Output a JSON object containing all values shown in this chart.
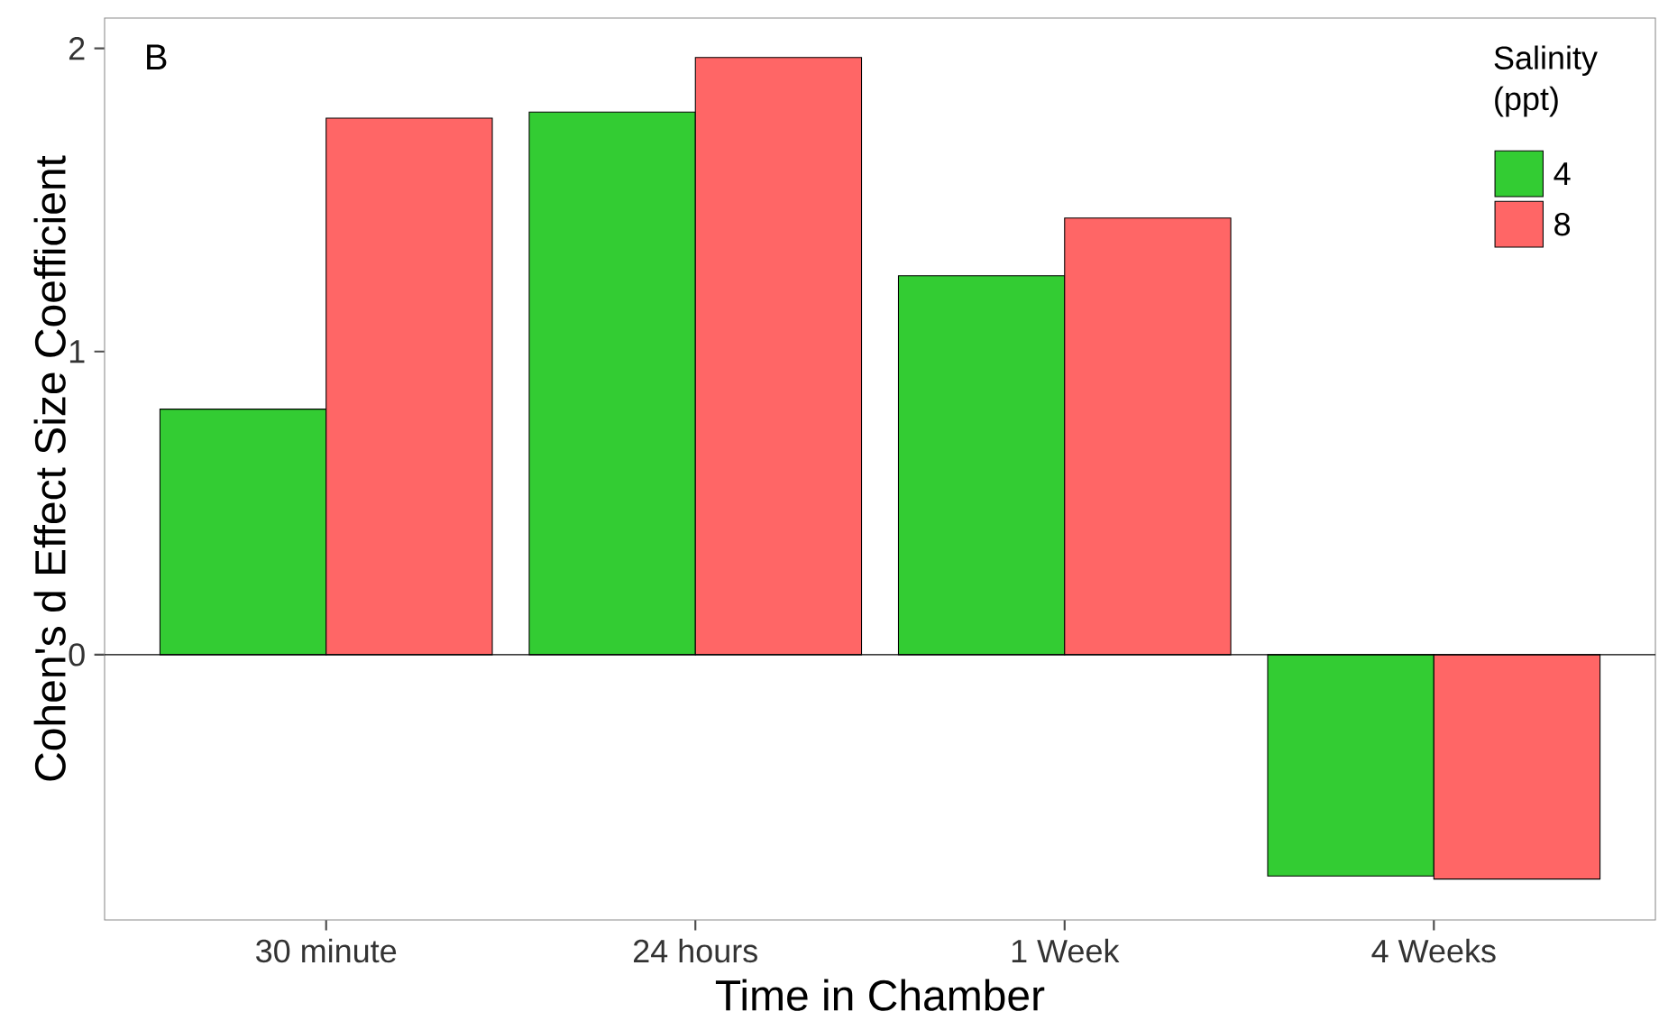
{
  "chart_data": {
    "type": "bar",
    "xlabel": "Time in Chamber",
    "ylabel": "Cohen's d Effect Size Coefficient",
    "legend_title": "Salinity (ppt)",
    "annotations": [
      "B"
    ],
    "categories": [
      "30 minute",
      "24 hours",
      "1 Week",
      "4 Weeks"
    ],
    "series": [
      {
        "name": "4",
        "color": "#33cc33",
        "values": [
          0.81,
          1.79,
          1.25,
          -0.73
        ]
      },
      {
        "name": "8",
        "color": "#ff6666",
        "values": [
          1.77,
          1.97,
          1.44,
          -0.74
        ]
      }
    ],
    "ylim": [
      -0.875,
      2.1
    ],
    "yticks": [
      0,
      1,
      2
    ],
    "ref_lines": [
      {
        "axis": "y",
        "value": 0,
        "color": "#000000"
      }
    ],
    "grid": false,
    "legend": "top right"
  }
}
